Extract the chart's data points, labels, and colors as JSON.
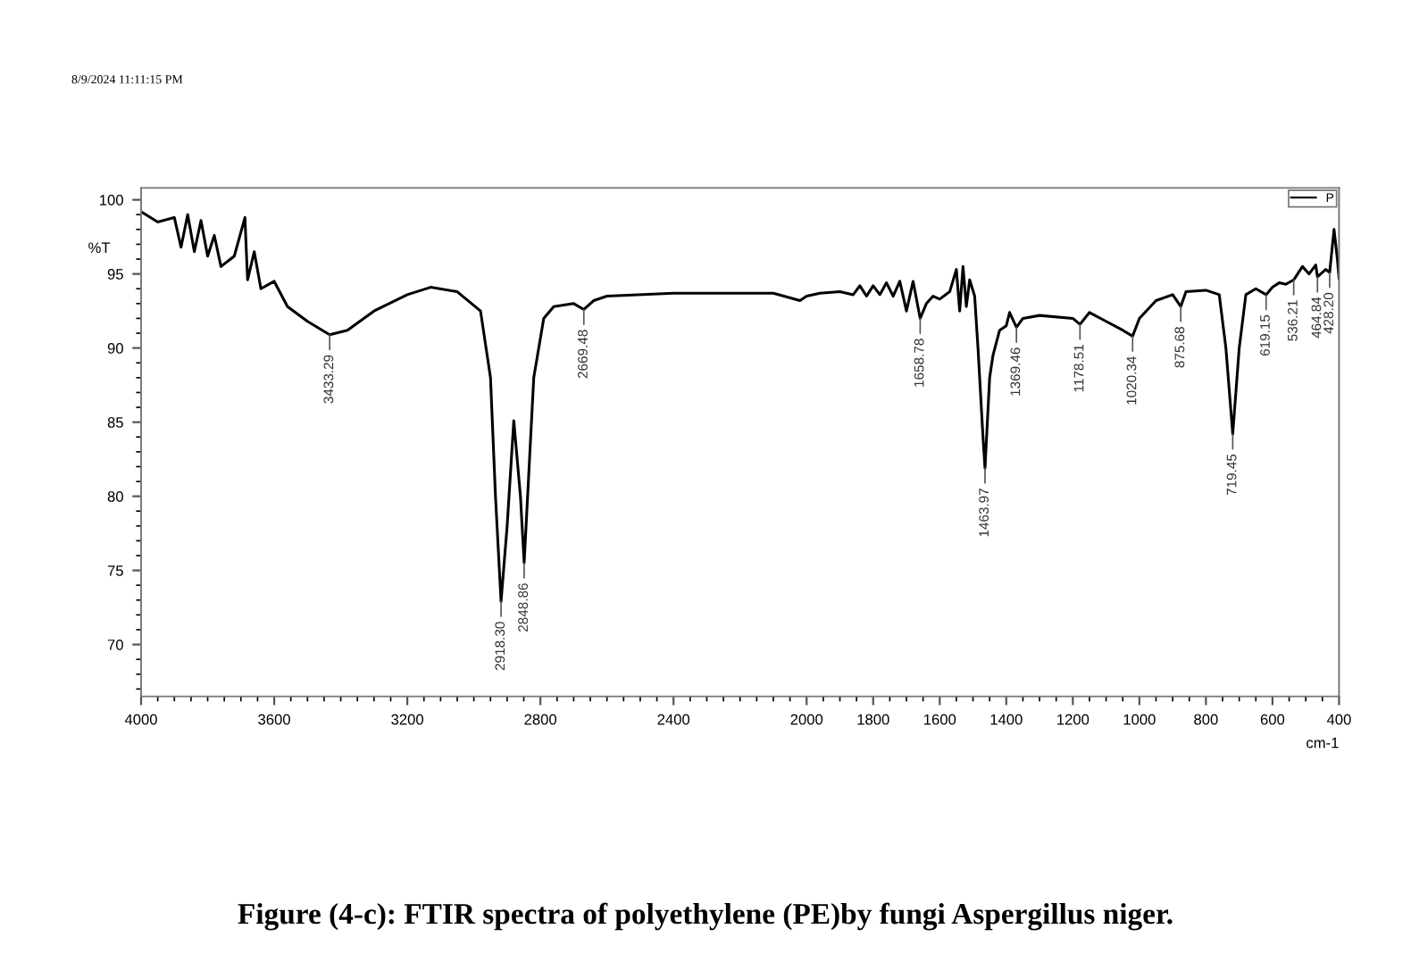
{
  "chart_data": {
    "type": "line",
    "title": "Figure (4-c): FTIR spectra of polyethylene (PE)by fungi Aspergillus niger.",
    "xlabel": "cm-1",
    "ylabel": "%T",
    "annotations": [
      "8/9/2024 11:11:15 PM",
      {
        "text": "3433.29",
        "x": 3433.29,
        "y": 90.9
      },
      {
        "text": "2918.30",
        "x": 2918.3,
        "y": 72.9
      },
      {
        "text": "2848.86",
        "x": 2848.86,
        "y": 75.5
      },
      {
        "text": "2669.48",
        "x": 2669.48,
        "y": 92.6
      },
      {
        "text": "1658.78",
        "x": 1658.78,
        "y": 92.0
      },
      {
        "text": "1463.97",
        "x": 1463.97,
        "y": 81.9
      },
      {
        "text": "1369.46",
        "x": 1369.46,
        "y": 91.4
      },
      {
        "text": "1178.51",
        "x": 1178.51,
        "y": 91.6
      },
      {
        "text": "1020.34",
        "x": 1020.34,
        "y": 90.8
      },
      {
        "text": "875.68",
        "x": 875.68,
        "y": 92.8
      },
      {
        "text": "719.45",
        "x": 719.45,
        "y": 84.2
      },
      {
        "text": "619.15",
        "x": 619.15,
        "y": 93.6
      },
      {
        "text": "536.21",
        "x": 536.21,
        "y": 94.6
      },
      {
        "text": "464.84",
        "x": 464.84,
        "y": 94.8
      },
      {
        "text": "428.20",
        "x": 428.2,
        "y": 95.1
      }
    ],
    "series": [
      {
        "name": "P",
        "color": "#000000",
        "x": [
          4000,
          3950,
          3900,
          3880,
          3860,
          3840,
          3820,
          3800,
          3780,
          3760,
          3720,
          3688,
          3680,
          3660,
          3640,
          3600,
          3560,
          3500,
          3433.29,
          3380,
          3300,
          3200,
          3130,
          3050,
          2980,
          2950,
          2935,
          2918.3,
          2900,
          2880,
          2860,
          2848.86,
          2820,
          2790,
          2760,
          2700,
          2669.48,
          2640,
          2600,
          2400,
          2100,
          2020,
          2000,
          1960,
          1900,
          1860,
          1840,
          1820,
          1800,
          1780,
          1760,
          1740,
          1720,
          1700,
          1680,
          1658.78,
          1640,
          1620,
          1600,
          1570,
          1550,
          1540,
          1530,
          1520,
          1510,
          1495,
          1485,
          1470,
          1463.97,
          1450,
          1440,
          1420,
          1400,
          1390,
          1369.46,
          1350,
          1300,
          1200,
          1178.51,
          1150,
          1100,
          1050,
          1020.34,
          1000,
          950,
          900,
          875.68,
          860,
          800,
          760,
          740,
          719.45,
          700,
          680,
          650,
          619.15,
          600,
          580,
          560,
          536.21,
          510,
          490,
          470,
          464.84,
          440,
          428.2,
          415,
          405,
          400
        ],
        "values": [
          99.2,
          98.5,
          98.8,
          96.8,
          99.0,
          96.5,
          98.6,
          96.2,
          97.6,
          95.5,
          96.2,
          98.8,
          94.6,
          96.5,
          94.0,
          94.5,
          92.8,
          91.8,
          90.9,
          91.2,
          92.5,
          93.6,
          94.1,
          93.8,
          92.5,
          88,
          80,
          72.9,
          78,
          85.1,
          80,
          75.5,
          88,
          92,
          92.8,
          93,
          92.6,
          93.2,
          93.5,
          93.7,
          93.7,
          93.2,
          93.5,
          93.7,
          93.8,
          93.6,
          94.2,
          93.5,
          94.2,
          93.6,
          94.4,
          93.5,
          94.5,
          92.5,
          94.5,
          92.0,
          93.0,
          93.5,
          93.3,
          93.8,
          95.3,
          92.5,
          95.5,
          92.8,
          94.6,
          93.5,
          90,
          84,
          81.9,
          88,
          89.5,
          91.2,
          91.5,
          92.4,
          91.4,
          92.0,
          92.2,
          92.0,
          91.6,
          92.4,
          91.8,
          91.2,
          90.8,
          92.0,
          93.2,
          93.6,
          92.8,
          93.8,
          93.9,
          93.6,
          90,
          84.2,
          90,
          93.6,
          94.0,
          93.6,
          94.1,
          94.4,
          94.3,
          94.6,
          95.5,
          95.0,
          95.6,
          94.8,
          95.3,
          95.1,
          98,
          96.0,
          94.7
        ]
      }
    ],
    "xlim": [
      4000,
      400
    ],
    "ylim": [
      66.5,
      100.8
    ],
    "xticks": [
      4000,
      3600,
      3200,
      2800,
      2400,
      2000,
      1800,
      1600,
      1400,
      1200,
      1000,
      800,
      600,
      400
    ],
    "yticks": [
      70,
      75,
      80,
      85,
      90,
      95,
      100
    ],
    "grid": false,
    "legend": "top right",
    "line_style": "solid",
    "marker": "none"
  }
}
